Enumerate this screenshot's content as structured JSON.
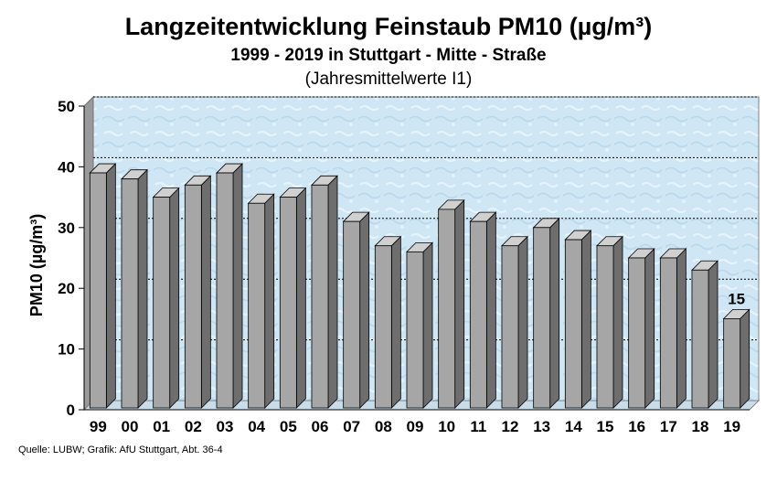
{
  "chart_data": {
    "type": "bar",
    "title": "Langzeitentwicklung Feinstaub PM10 (µg/m³)",
    "subtitle": "1999 - 2019 in Stuttgart - Mitte - Straße",
    "subtitle2": "(Jahresmittelwerte I1)",
    "xlabel": "",
    "ylabel": "PM10 (µg/m³)",
    "ylim": [
      0,
      50
    ],
    "yticks": [
      0,
      10,
      20,
      30,
      40,
      50
    ],
    "grid": true,
    "categories": [
      "99",
      "00",
      "01",
      "02",
      "03",
      "04",
      "05",
      "06",
      "07",
      "08",
      "09",
      "10",
      "11",
      "12",
      "13",
      "14",
      "15",
      "16",
      "17",
      "18",
      "19"
    ],
    "values": [
      39,
      38,
      35,
      37,
      39,
      34,
      35,
      37,
      31,
      27,
      26,
      33,
      31,
      27,
      30,
      28,
      27,
      25,
      25,
      23,
      15
    ],
    "annotation": {
      "category": "19",
      "text": "15"
    },
    "colors": {
      "bar_front": "#a6a6a6",
      "bar_side": "#6e6e6e",
      "bar_top": "#d0d0d0",
      "plot_bg": "#cfe6f5",
      "plot_wall": "#9a9a9a",
      "floor": "#c8dcea"
    }
  },
  "source_text": "Quelle: LUBW; Grafik: AfU Stuttgart, Abt. 36-4"
}
